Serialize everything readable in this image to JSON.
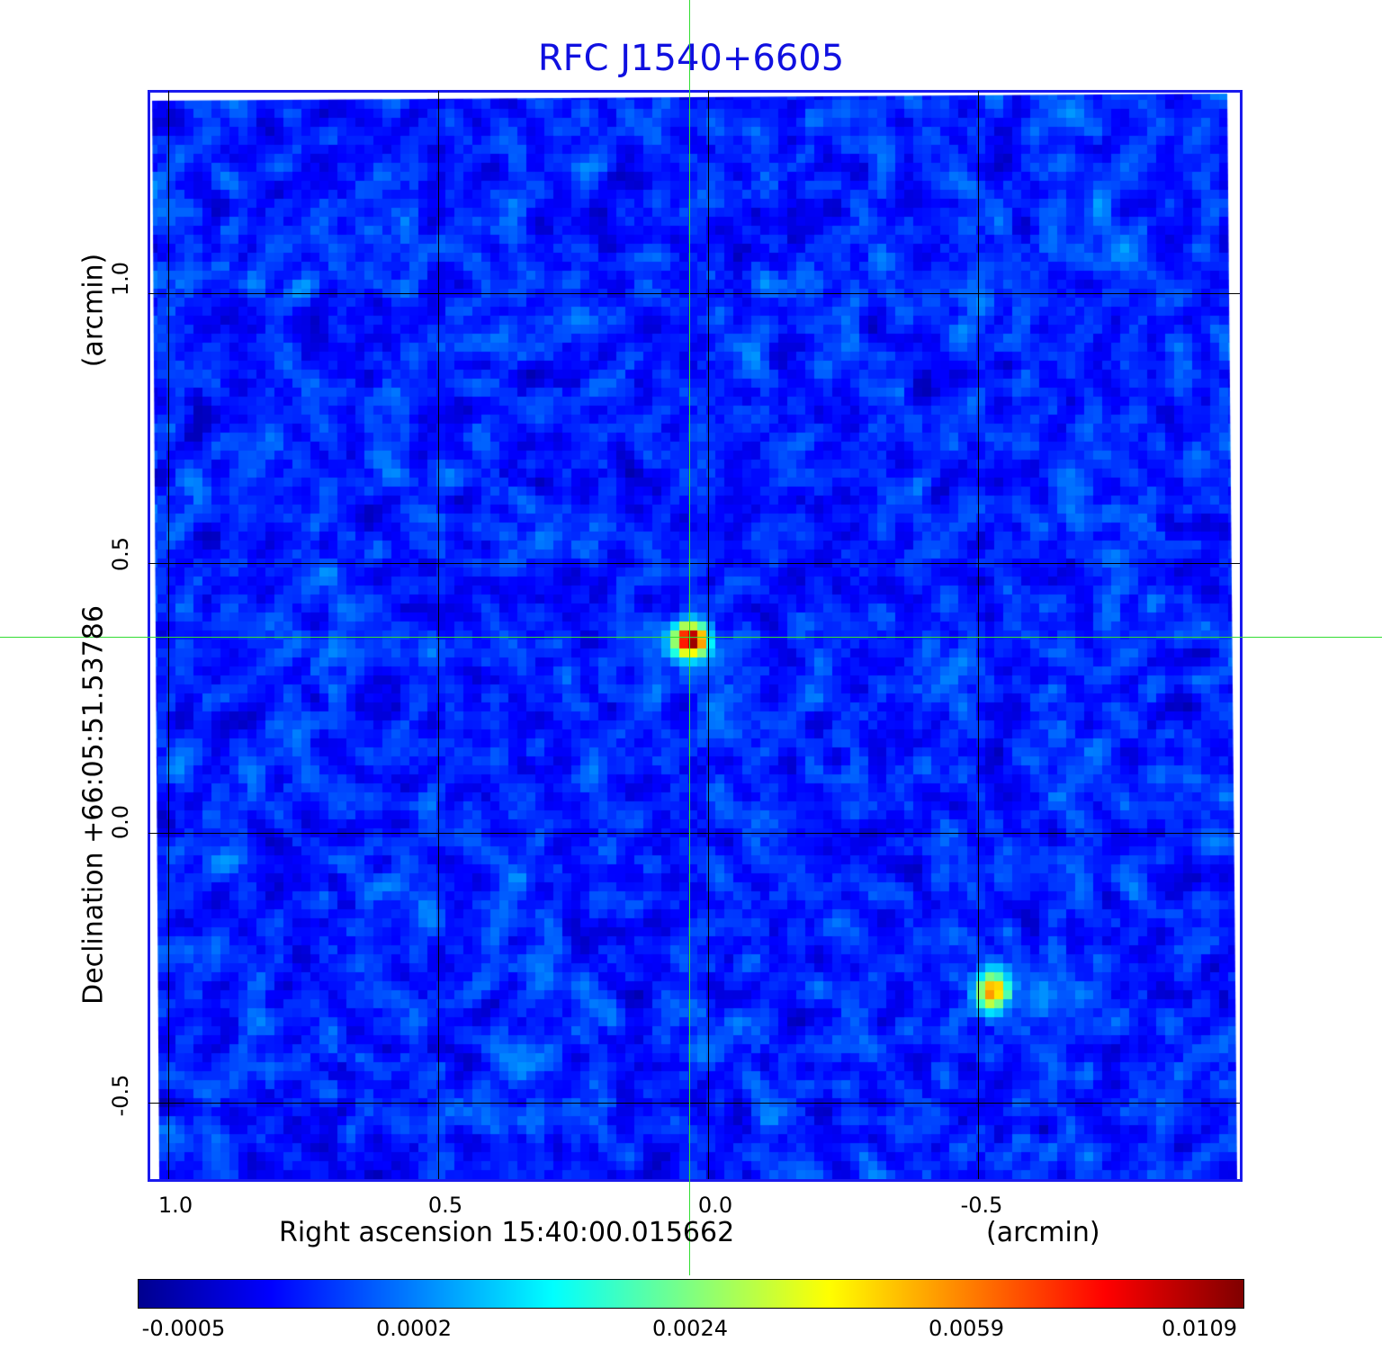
{
  "chart_data": {
    "type": "heatmap",
    "title": "RFC J1540+6605",
    "xlabel": "Right ascension  15:40:00.015662",
    "xunit": "(arcmin)",
    "ylabel": "Declination  +66:05:51.53786",
    "yunit": "(arcmin)",
    "xticks": [
      "1.0",
      "0.5",
      "0.0",
      "-0.5"
    ],
    "yticks": [
      "1.0",
      "0.5",
      "0.0",
      "-0.5"
    ],
    "xlim": [
      1.04,
      -0.98
    ],
    "ylim": [
      -0.64,
      1.38
    ],
    "grid": true,
    "colorbar": {
      "colormap": "jet",
      "ticks": [
        "-0.0005",
        "0.0002",
        "0.0024",
        "0.0059",
        "0.0109"
      ]
    },
    "sources": [
      {
        "x": 0.035,
        "y": 0.36,
        "peak": 0.0109
      },
      {
        "x": -0.52,
        "y": -0.29,
        "peak": 0.0085
      }
    ],
    "crosshair": {
      "x": 0.035,
      "y": 0.36
    },
    "colors": {
      "title": "#1010e0",
      "frame": "#1a1aee",
      "crosshair": "#33dd33"
    }
  }
}
